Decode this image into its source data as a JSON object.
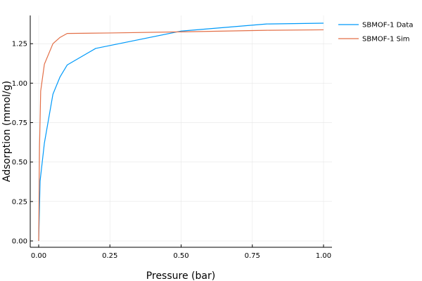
{
  "chart_data": {
    "type": "line",
    "title": "",
    "xlabel": "Pressure (bar)",
    "ylabel": "Adsorption (mmol/g)",
    "xlim": [
      0.0,
      1.0
    ],
    "ylim": [
      0.0,
      1.38
    ],
    "xticks": [
      "0.00",
      "0.25",
      "0.50",
      "0.75",
      "1.00"
    ],
    "yticks": [
      "0.00",
      "0.25",
      "0.50",
      "0.75",
      "1.00",
      "1.25"
    ],
    "grid": true,
    "legend_position": "top-right",
    "series": [
      {
        "name": "SBMOF-1 Data",
        "color": "#009AFA",
        "points": [
          [
            0.0,
            0.0
          ],
          [
            0.002,
            0.15
          ],
          [
            0.005,
            0.38
          ],
          [
            0.02,
            0.62
          ],
          [
            0.05,
            0.93
          ],
          [
            0.075,
            1.04
          ],
          [
            0.1,
            1.115
          ],
          [
            0.2,
            1.22
          ],
          [
            0.5,
            1.33
          ],
          [
            0.8,
            1.375
          ],
          [
            1.0,
            1.38
          ]
        ]
      },
      {
        "name": "SBMOF-1 Sim",
        "color": "#E36F47",
        "points": [
          [
            0.0,
            0.0
          ],
          [
            0.003,
            0.6
          ],
          [
            0.007,
            0.95
          ],
          [
            0.02,
            1.12
          ],
          [
            0.05,
            1.25
          ],
          [
            0.075,
            1.29
          ],
          [
            0.1,
            1.315
          ],
          [
            0.25,
            1.318
          ],
          [
            0.5,
            1.325
          ],
          [
            0.8,
            1.335
          ],
          [
            1.0,
            1.338
          ]
        ]
      }
    ]
  }
}
